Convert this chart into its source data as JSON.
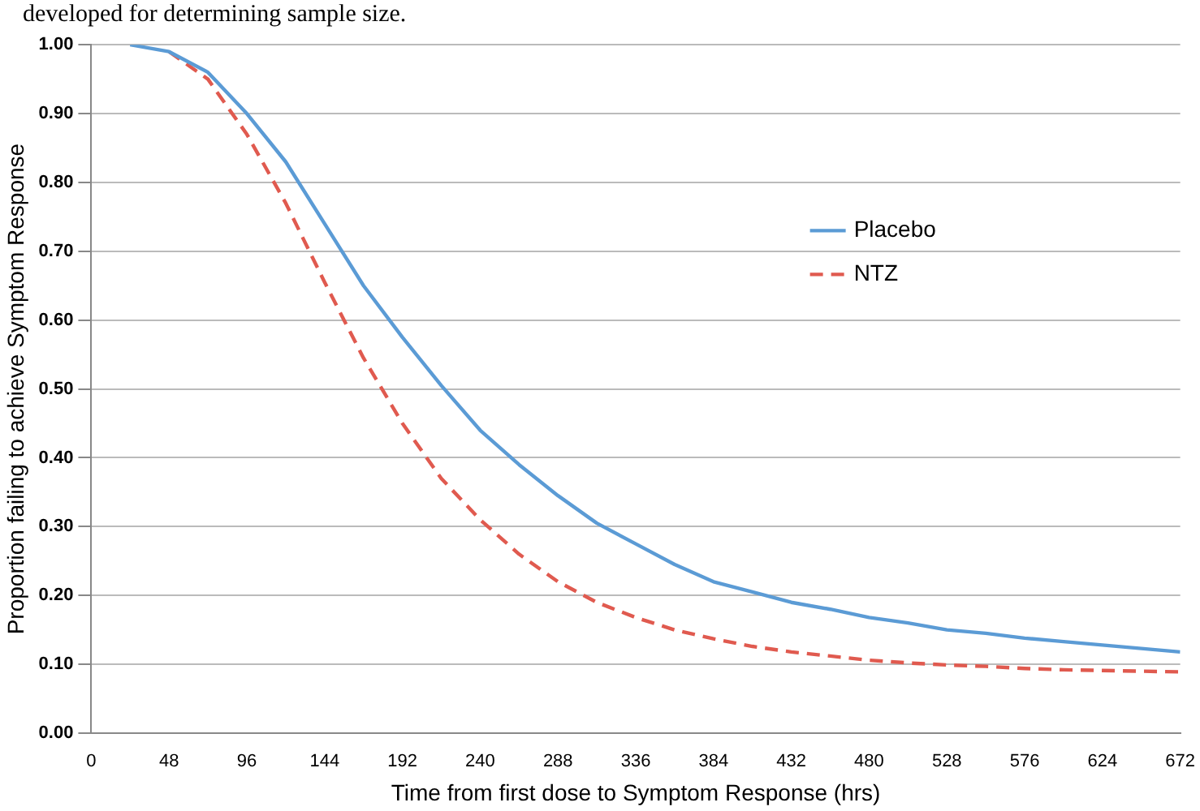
{
  "chart_data": {
    "type": "line",
    "xlabel": "Time from first dose to Symptom Response (hrs)",
    "ylabel": "Proportion failing to achieve Symptom Response",
    "annotations": [
      "developed for determining sample size."
    ],
    "x": [
      24,
      48,
      72,
      96,
      120,
      144,
      168,
      192,
      216,
      240,
      264,
      288,
      312,
      336,
      360,
      384,
      408,
      432,
      456,
      480,
      504,
      528,
      552,
      576,
      600,
      624,
      648,
      672
    ],
    "series": [
      {
        "name": "Placebo",
        "color": "#5b9bd5",
        "line_style": "solid",
        "values": [
          1.0,
          0.99,
          0.96,
          0.9,
          0.83,
          0.74,
          0.65,
          0.575,
          0.505,
          0.44,
          0.39,
          0.345,
          0.305,
          0.275,
          0.245,
          0.22,
          0.205,
          0.19,
          0.18,
          0.168,
          0.16,
          0.15,
          0.145,
          0.138,
          0.133,
          0.128,
          0.123,
          0.118
        ]
      },
      {
        "name": "NTZ",
        "color": "#e05a4f",
        "line_style": "dashed",
        "values": [
          null,
          0.99,
          0.95,
          0.87,
          0.77,
          0.655,
          0.545,
          0.45,
          0.37,
          0.31,
          0.26,
          0.22,
          0.19,
          0.168,
          0.15,
          0.137,
          0.126,
          0.118,
          0.112,
          0.106,
          0.102,
          0.099,
          0.097,
          0.094,
          0.092,
          0.091,
          0.09,
          0.089
        ]
      }
    ],
    "xlim": [
      0,
      672
    ],
    "xticks": [
      0,
      48,
      96,
      144,
      192,
      240,
      288,
      336,
      384,
      432,
      480,
      528,
      576,
      624,
      672
    ],
    "ylim": [
      0,
      1
    ],
    "yticks": [
      {
        "value": 0,
        "label": "0.00"
      },
      {
        "value": 0.1,
        "label": "0.10"
      },
      {
        "value": 0.2,
        "label": "0.20"
      },
      {
        "value": 0.3,
        "label": "0.30"
      },
      {
        "value": 0.4,
        "label": "0.40"
      },
      {
        "value": 0.5,
        "label": "0.50"
      },
      {
        "value": 0.6,
        "label": "0.60"
      },
      {
        "value": 0.7,
        "label": "0.70"
      },
      {
        "value": 0.8,
        "label": "0.80"
      },
      {
        "value": 0.9,
        "label": "0.90"
      },
      {
        "value": 1,
        "label": "1.00"
      }
    ],
    "grid": "y",
    "legend": "right",
    "marker": "none"
  }
}
